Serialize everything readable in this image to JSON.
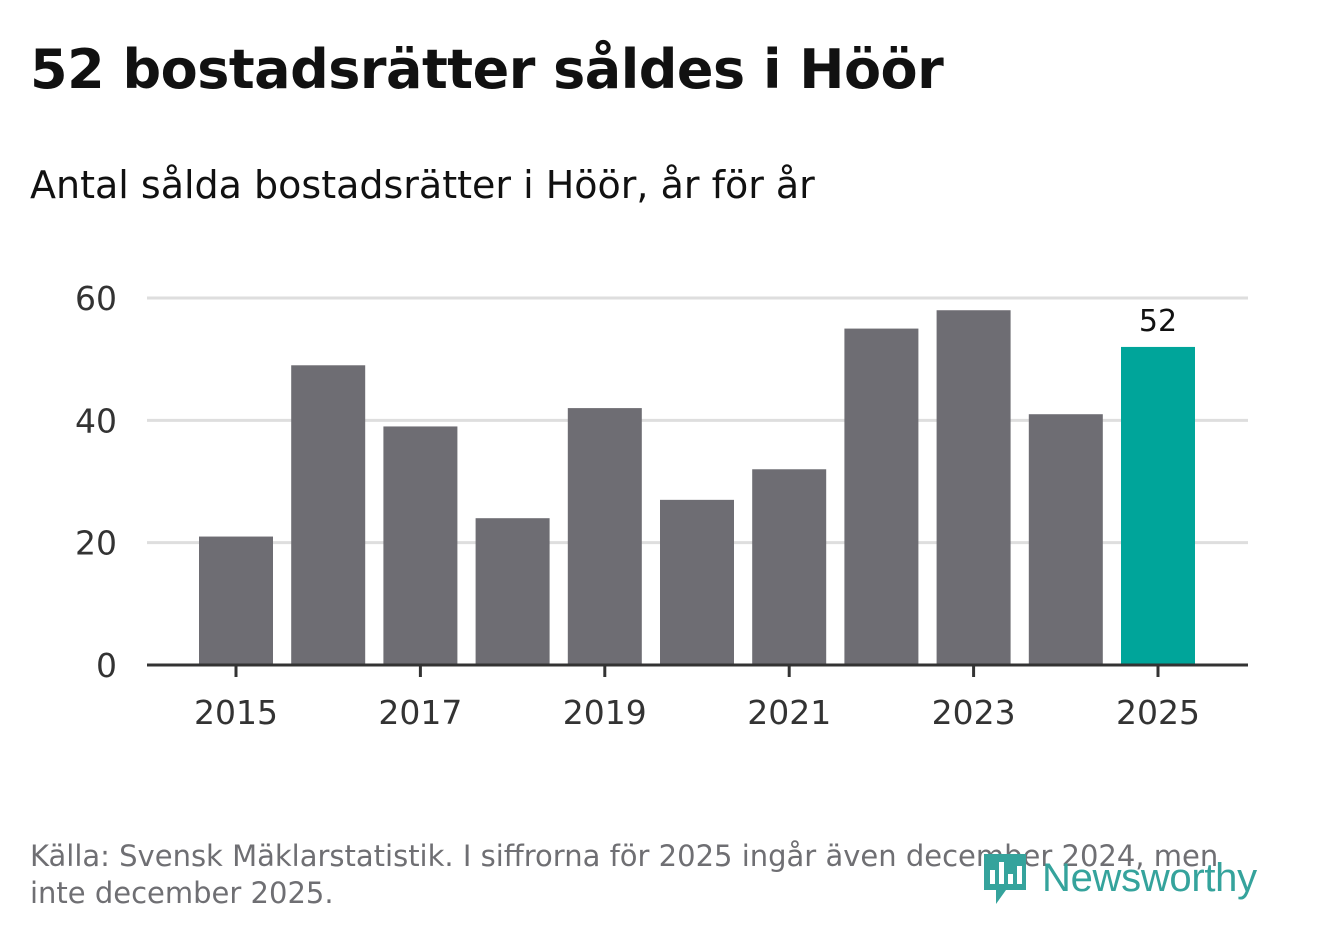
{
  "header": {
    "title": "52 bostadsrätter såldes i Höör",
    "subtitle": "Antal sålda bostadsrätter i Höör, år för år"
  },
  "footer": {
    "source": "Källa: Svensk Mäklarstatistik. I siffrorna för 2025 ingår även december 2024, men inte december 2025.",
    "logo_text": "Newsworthy",
    "logo_icon": "newsworthy-chart-bubble-icon"
  },
  "colors": {
    "bar": "#6e6d73",
    "highlight": "#00a59a",
    "grid": "#dedede",
    "axis": "#333333",
    "tick_text": "#333333",
    "brand": "#35a39c"
  },
  "chart_data": {
    "type": "bar",
    "title": "52 bostadsrätter såldes i Höör",
    "subtitle": "Antal sålda bostadsrätter i Höör, år för år",
    "xlabel": "",
    "ylabel": "",
    "categories": [
      "2015",
      "2016",
      "2017",
      "2018",
      "2019",
      "2020",
      "2021",
      "2022",
      "2023",
      "2024",
      "2025"
    ],
    "values": [
      21,
      49,
      39,
      24,
      42,
      27,
      32,
      55,
      58,
      41,
      52
    ],
    "highlight_index": 10,
    "data_labels": [
      {
        "index": 10,
        "text": "52"
      }
    ],
    "x_tick_labels": [
      "2015",
      "2017",
      "2019",
      "2021",
      "2023",
      "2025"
    ],
    "y_ticks": [
      0,
      20,
      40,
      60
    ],
    "ylim": [
      0,
      60
    ],
    "grid": true,
    "legend": "none"
  }
}
